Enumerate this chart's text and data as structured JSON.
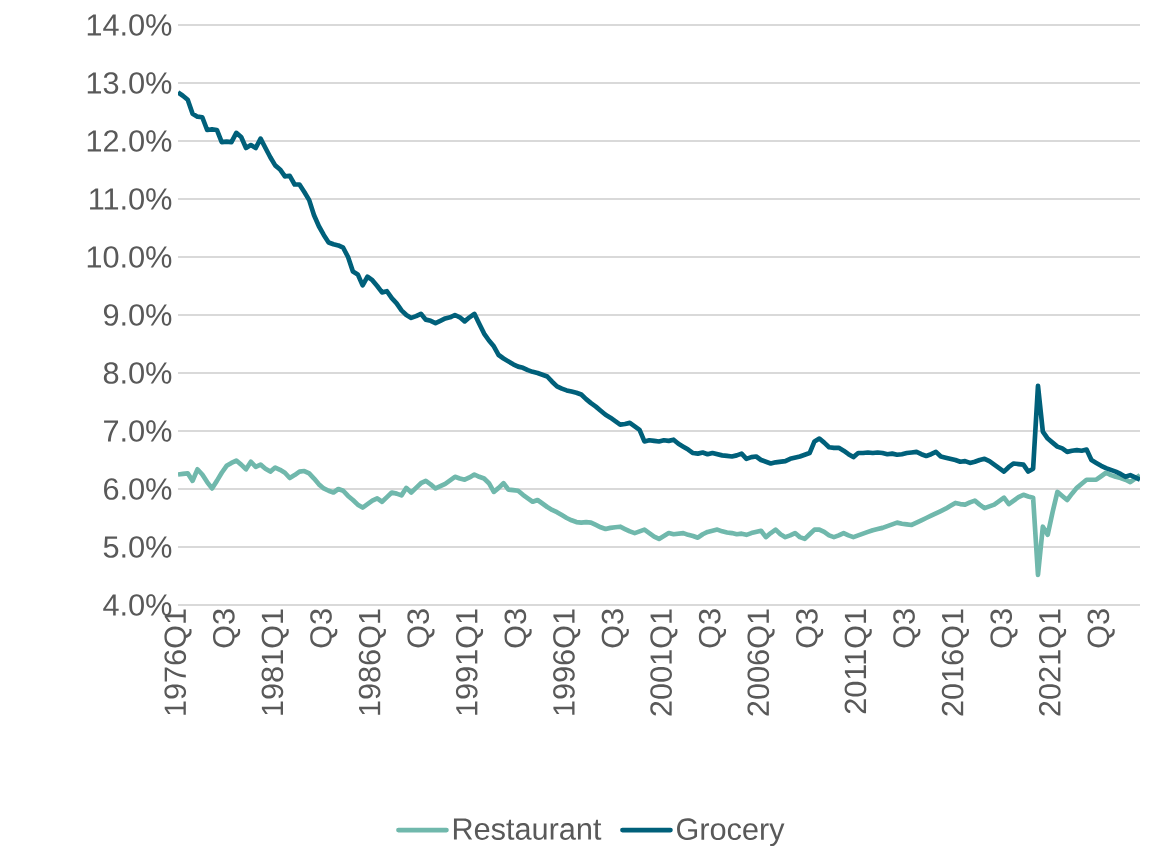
{
  "chart_data": {
    "type": "line",
    "categories": [
      "1976Q1",
      null,
      null,
      null,
      null,
      null,
      null,
      null,
      null,
      null,
      "Q3",
      null,
      null,
      null,
      null,
      null,
      null,
      null,
      null,
      null,
      "1981Q1",
      null,
      null,
      null,
      null,
      null,
      null,
      null,
      null,
      null,
      "Q3",
      null,
      null,
      null,
      null,
      null,
      null,
      null,
      null,
      null,
      "1986Q1",
      null,
      null,
      null,
      null,
      null,
      null,
      null,
      null,
      null,
      "Q3",
      null,
      null,
      null,
      null,
      null,
      null,
      null,
      null,
      null,
      "1991Q1",
      null,
      null,
      null,
      null,
      null,
      null,
      null,
      null,
      null,
      "Q3",
      null,
      null,
      null,
      null,
      null,
      null,
      null,
      null,
      null,
      "1996Q1",
      null,
      null,
      null,
      null,
      null,
      null,
      null,
      null,
      null,
      "Q3",
      null,
      null,
      null,
      null,
      null,
      null,
      null,
      null,
      null,
      "2001Q1",
      null,
      null,
      null,
      null,
      null,
      null,
      null,
      null,
      null,
      "Q3",
      null,
      null,
      null,
      null,
      null,
      null,
      null,
      null,
      null,
      "2006Q1",
      null,
      null,
      null,
      null,
      null,
      null,
      null,
      null,
      null,
      "Q3",
      null,
      null,
      null,
      null,
      null,
      null,
      null,
      null,
      null,
      "2011Q1",
      null,
      null,
      null,
      null,
      null,
      null,
      null,
      null,
      null,
      "Q3",
      null,
      null,
      null,
      null,
      null,
      null,
      null,
      null,
      null,
      "2016Q1",
      null,
      null,
      null,
      null,
      null,
      null,
      null,
      null,
      null,
      "Q3",
      null,
      null,
      null,
      null,
      null,
      null,
      null,
      null,
      null,
      "2021Q1",
      null,
      null,
      null,
      null,
      null,
      null,
      null,
      null,
      null,
      "Q3",
      null,
      null,
      null,
      null,
      null,
      null,
      null,
      null
    ],
    "series": [
      {
        "name": "Restaurant",
        "color": "#70b8ac",
        "values": [
          6.25,
          6.26,
          6.27,
          6.14,
          6.34,
          6.25,
          6.12,
          6.01,
          6.14,
          6.28,
          6.4,
          6.45,
          6.49,
          6.42,
          6.34,
          6.47,
          6.38,
          6.42,
          6.35,
          6.3,
          6.37,
          6.33,
          6.28,
          6.19,
          6.24,
          6.3,
          6.31,
          6.27,
          6.18,
          6.08,
          6.01,
          5.97,
          5.94,
          6.0,
          5.97,
          5.88,
          5.81,
          5.73,
          5.68,
          5.74,
          5.8,
          5.84,
          5.78,
          5.86,
          5.94,
          5.92,
          5.89,
          6.02,
          5.94,
          6.02,
          6.1,
          6.14,
          6.08,
          6.01,
          6.05,
          6.09,
          6.15,
          6.21,
          6.18,
          6.16,
          6.2,
          6.25,
          6.21,
          6.18,
          6.1,
          5.95,
          6.02,
          6.1,
          5.99,
          5.98,
          5.97,
          5.9,
          5.84,
          5.78,
          5.81,
          5.75,
          5.69,
          5.64,
          5.6,
          5.55,
          5.5,
          5.46,
          5.43,
          5.42,
          5.43,
          5.42,
          5.38,
          5.34,
          5.31,
          5.33,
          5.34,
          5.35,
          5.31,
          5.27,
          5.24,
          5.27,
          5.3,
          5.24,
          5.18,
          5.14,
          5.19,
          5.24,
          5.22,
          5.23,
          5.24,
          5.21,
          5.19,
          5.16,
          5.22,
          5.26,
          5.28,
          5.3,
          5.27,
          5.25,
          5.24,
          5.22,
          5.23,
          5.21,
          5.24,
          5.26,
          5.28,
          5.17,
          5.24,
          5.3,
          5.22,
          5.17,
          5.2,
          5.24,
          5.17,
          5.14,
          5.22,
          5.3,
          5.3,
          5.26,
          5.2,
          5.17,
          5.2,
          5.24,
          5.2,
          5.17,
          5.2,
          5.23,
          5.26,
          5.29,
          5.31,
          5.33,
          5.36,
          5.39,
          5.42,
          5.4,
          5.39,
          5.38,
          5.42,
          5.46,
          5.5,
          5.54,
          5.58,
          5.62,
          5.66,
          5.71,
          5.76,
          5.74,
          5.73,
          5.77,
          5.8,
          5.73,
          5.67,
          5.7,
          5.73,
          5.79,
          5.85,
          5.74,
          5.8,
          5.86,
          5.9,
          5.87,
          5.85,
          4.52,
          5.35,
          5.21,
          5.6,
          5.95,
          5.88,
          5.81,
          5.92,
          6.02,
          6.09,
          6.16,
          6.16,
          6.16,
          6.22,
          6.28,
          6.24,
          6.21,
          6.19,
          6.16,
          6.12,
          6.18,
          6.24
        ]
      },
      {
        "name": "Grocery",
        "color": "#00607a",
        "values": [
          12.84,
          12.78,
          12.71,
          12.47,
          12.42,
          12.41,
          12.19,
          12.2,
          12.19,
          11.98,
          11.99,
          11.98,
          12.14,
          12.07,
          11.88,
          11.93,
          11.88,
          12.04,
          11.88,
          11.72,
          11.58,
          11.51,
          11.39,
          11.4,
          11.25,
          11.25,
          11.12,
          10.98,
          10.72,
          10.53,
          10.38,
          10.25,
          10.22,
          10.2,
          10.16,
          10.0,
          9.75,
          9.7,
          9.51,
          9.66,
          9.6,
          9.5,
          9.39,
          9.41,
          9.29,
          9.2,
          9.08,
          9.0,
          8.95,
          8.98,
          9.02,
          8.92,
          8.9,
          8.86,
          8.9,
          8.94,
          8.96,
          9.0,
          8.96,
          8.89,
          8.96,
          9.02,
          8.85,
          8.68,
          8.56,
          8.46,
          8.31,
          8.25,
          8.2,
          8.15,
          8.11,
          8.09,
          8.05,
          8.02,
          8.0,
          7.97,
          7.94,
          7.85,
          7.77,
          7.73,
          7.7,
          7.68,
          7.66,
          7.63,
          7.55,
          7.48,
          7.42,
          7.35,
          7.28,
          7.23,
          7.17,
          7.11,
          7.12,
          7.14,
          7.08,
          7.02,
          6.82,
          6.84,
          6.83,
          6.82,
          6.84,
          6.83,
          6.85,
          6.78,
          6.73,
          6.68,
          6.62,
          6.61,
          6.63,
          6.6,
          6.62,
          6.6,
          6.58,
          6.57,
          6.56,
          6.58,
          6.61,
          6.52,
          6.55,
          6.56,
          6.5,
          6.47,
          6.44,
          6.46,
          6.47,
          6.48,
          6.52,
          6.54,
          6.56,
          6.59,
          6.62,
          6.82,
          6.87,
          6.8,
          6.72,
          6.71,
          6.71,
          6.66,
          6.6,
          6.55,
          6.62,
          6.62,
          6.63,
          6.62,
          6.63,
          6.62,
          6.6,
          6.61,
          6.59,
          6.6,
          6.62,
          6.63,
          6.64,
          6.6,
          6.57,
          6.6,
          6.64,
          6.56,
          6.54,
          6.52,
          6.5,
          6.47,
          6.48,
          6.45,
          6.47,
          6.5,
          6.52,
          6.48,
          6.42,
          6.36,
          6.3,
          6.38,
          6.44,
          6.43,
          6.42,
          6.3,
          6.35,
          7.78,
          6.99,
          6.87,
          6.8,
          6.73,
          6.7,
          6.64,
          6.66,
          6.67,
          6.66,
          6.68,
          6.5,
          6.45,
          6.4,
          6.36,
          6.33,
          6.3,
          6.26,
          6.21,
          6.24,
          6.2,
          6.16
        ]
      }
    ],
    "ylim": [
      4,
      14
    ],
    "yticks": [
      {
        "value": 4,
        "label": "4.0%"
      },
      {
        "value": 5,
        "label": "5.0%"
      },
      {
        "value": 6,
        "label": "6.0%"
      },
      {
        "value": 7,
        "label": "7.0%"
      },
      {
        "value": 8,
        "label": "8.0%"
      },
      {
        "value": 9,
        "label": "9.0%"
      },
      {
        "value": 10,
        "label": "10.0%"
      },
      {
        "value": 11,
        "label": "11.0%"
      },
      {
        "value": 12,
        "label": "12.0%"
      },
      {
        "value": 13,
        "label": "13.0%"
      },
      {
        "value": 14,
        "label": "14.0%"
      }
    ],
    "grid": "y",
    "legend": "bottom",
    "marker": "none",
    "line_style": "solid"
  }
}
